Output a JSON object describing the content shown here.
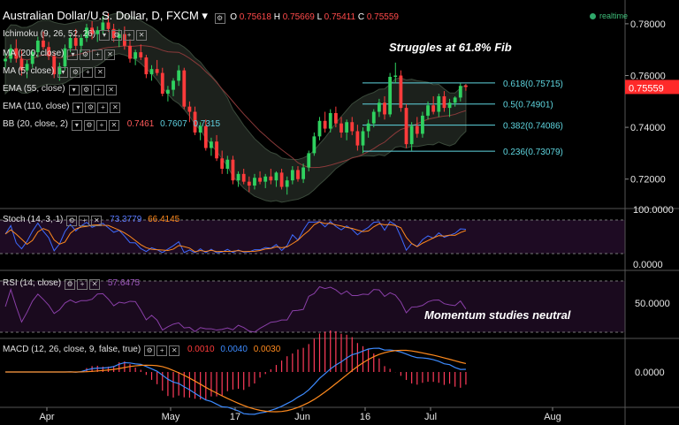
{
  "header": {
    "title": "Australian Dollar/U.S. Dollar, D, FXCM",
    "o_label": "O",
    "o": "0.75618",
    "h_label": "H",
    "h": "0.75669",
    "l_label": "L",
    "l": "0.75411",
    "c_label": "C",
    "c": "0.75559",
    "realtime": "realtime"
  },
  "indicators": {
    "ichimoku": "Ichimoku (9, 26, 52, 26)",
    "ma200": "MA (200, close)",
    "ma5": "MA (5, close)",
    "ema55": "EMA (55, close)",
    "ema110": "EMA (110, close)",
    "bb": "BB (20, close, 2)",
    "bb_values": [
      "0.7461",
      "0.7607",
      "0.7315"
    ],
    "stoch": "Stoch (14, 3, 1)",
    "stoch_values": [
      "73.3779",
      "66.4145"
    ],
    "rsi": "RSI (14, close)",
    "rsi_value": "57.6475",
    "macd": "MACD (12, 26, close, 9, false, true)",
    "macd_values": [
      "0.0010",
      "0.0040",
      "0.0030"
    ]
  },
  "annotations": {
    "main": "Struggles at 61.8% Fib",
    "rsi": "Momentum studies neutral"
  },
  "colors": {
    "up": "#2fd15f",
    "down": "#ff3b3b",
    "fib": "#5fd6e0",
    "stoch_k": "#3d6bff",
    "stoch_d": "#ff8a1e",
    "rsi": "#8a3fa8",
    "macd": "#3d8bff",
    "signal": "#ff8a1e",
    "bb_fill": "#1c211c"
  },
  "chart_data": {
    "type": "candlestick",
    "title": "Australian Dollar/U.S. Dollar, D, FXCM",
    "x_ticks": [
      "Apr",
      "May",
      "17",
      "Jun",
      "16",
      "Jul",
      "Aug"
    ],
    "y_ticks": [
      "0.78000",
      "0.76000",
      "0.74000",
      "0.72000"
    ],
    "last_price": "0.75559",
    "ylim": [
      0.71,
      0.7885
    ],
    "fibonacci": [
      {
        "label": "0.618(0.75715)",
        "value": 0.75715
      },
      {
        "label": "0.5(0.74901)",
        "value": 0.74901
      },
      {
        "label": "0.382(0.74086)",
        "value": 0.74086
      },
      {
        "label": "0.236(0.73079)",
        "value": 0.73079
      }
    ],
    "candles": [
      [
        0.7655,
        0.769,
        0.763,
        0.7665
      ],
      [
        0.7665,
        0.772,
        0.765,
        0.7705
      ],
      [
        0.7705,
        0.774,
        0.765,
        0.7665
      ],
      [
        0.7665,
        0.77,
        0.76,
        0.762
      ],
      [
        0.762,
        0.766,
        0.759,
        0.7645
      ],
      [
        0.7645,
        0.77,
        0.763,
        0.769
      ],
      [
        0.769,
        0.775,
        0.767,
        0.7735
      ],
      [
        0.7735,
        0.777,
        0.77,
        0.771
      ],
      [
        0.771,
        0.773,
        0.766,
        0.7675
      ],
      [
        0.7675,
        0.769,
        0.759,
        0.7605
      ],
      [
        0.7605,
        0.765,
        0.758,
        0.7635
      ],
      [
        0.7635,
        0.772,
        0.762,
        0.7705
      ],
      [
        0.7705,
        0.776,
        0.769,
        0.7745
      ],
      [
        0.7745,
        0.778,
        0.77,
        0.7715
      ],
      [
        0.7715,
        0.776,
        0.769,
        0.7745
      ],
      [
        0.7745,
        0.78,
        0.773,
        0.7785
      ],
      [
        0.7785,
        0.781,
        0.774,
        0.776
      ],
      [
        0.776,
        0.779,
        0.773,
        0.7775
      ],
      [
        0.7775,
        0.783,
        0.776,
        0.7805
      ],
      [
        0.7805,
        0.784,
        0.777,
        0.778
      ],
      [
        0.778,
        0.78,
        0.773,
        0.7745
      ],
      [
        0.7745,
        0.778,
        0.771,
        0.776
      ],
      [
        0.776,
        0.779,
        0.77,
        0.7715
      ],
      [
        0.7715,
        0.774,
        0.765,
        0.7665
      ],
      [
        0.7665,
        0.77,
        0.764,
        0.769
      ],
      [
        0.769,
        0.772,
        0.766,
        0.767
      ],
      [
        0.767,
        0.768,
        0.759,
        0.7605
      ],
      [
        0.7605,
        0.764,
        0.758,
        0.7625
      ],
      [
        0.7625,
        0.766,
        0.76,
        0.761
      ],
      [
        0.761,
        0.763,
        0.752,
        0.753
      ],
      [
        0.753,
        0.756,
        0.75,
        0.7545
      ],
      [
        0.7545,
        0.759,
        0.752,
        0.758
      ],
      [
        0.758,
        0.764,
        0.756,
        0.762
      ],
      [
        0.762,
        0.763,
        0.747,
        0.748
      ],
      [
        0.748,
        0.75,
        0.742,
        0.746
      ],
      [
        0.746,
        0.748,
        0.737,
        0.738
      ],
      [
        0.738,
        0.742,
        0.735,
        0.7405
      ],
      [
        0.7405,
        0.743,
        0.731,
        0.732
      ],
      [
        0.732,
        0.736,
        0.729,
        0.7345
      ],
      [
        0.7345,
        0.737,
        0.727,
        0.728
      ],
      [
        0.728,
        0.731,
        0.722,
        0.724
      ],
      [
        0.724,
        0.729,
        0.722,
        0.7275
      ],
      [
        0.7275,
        0.729,
        0.718,
        0.7195
      ],
      [
        0.7195,
        0.723,
        0.717,
        0.722
      ],
      [
        0.722,
        0.724,
        0.718,
        0.719
      ],
      [
        0.719,
        0.721,
        0.715,
        0.7175
      ],
      [
        0.7175,
        0.722,
        0.716,
        0.7205
      ],
      [
        0.7205,
        0.723,
        0.718,
        0.719
      ],
      [
        0.719,
        0.722,
        0.7165,
        0.721
      ],
      [
        0.721,
        0.724,
        0.718,
        0.7195
      ],
      [
        0.7195,
        0.723,
        0.717,
        0.7225
      ],
      [
        0.7225,
        0.724,
        0.716,
        0.717
      ],
      [
        0.717,
        0.721,
        0.714,
        0.7195
      ],
      [
        0.7195,
        0.725,
        0.718,
        0.7235
      ],
      [
        0.7235,
        0.725,
        0.719,
        0.72
      ],
      [
        0.72,
        0.726,
        0.7185,
        0.7245
      ],
      [
        0.7245,
        0.731,
        0.723,
        0.73
      ],
      [
        0.73,
        0.738,
        0.729,
        0.7365
      ],
      [
        0.7365,
        0.744,
        0.735,
        0.7425
      ],
      [
        0.7425,
        0.746,
        0.738,
        0.7395
      ],
      [
        0.7395,
        0.747,
        0.738,
        0.7455
      ],
      [
        0.7455,
        0.748,
        0.74,
        0.7415
      ],
      [
        0.7415,
        0.744,
        0.736,
        0.738
      ],
      [
        0.738,
        0.743,
        0.735,
        0.742
      ],
      [
        0.742,
        0.744,
        0.737,
        0.7385
      ],
      [
        0.7385,
        0.741,
        0.731,
        0.733
      ],
      [
        0.733,
        0.74,
        0.73,
        0.7385
      ],
      [
        0.7385,
        0.743,
        0.736,
        0.7415
      ],
      [
        0.7415,
        0.747,
        0.74,
        0.746
      ],
      [
        0.746,
        0.751,
        0.744,
        0.7495
      ],
      [
        0.7495,
        0.752,
        0.743,
        0.745
      ],
      [
        0.745,
        0.761,
        0.744,
        0.7595
      ],
      [
        0.7595,
        0.765,
        0.757,
        0.76
      ],
      [
        0.76,
        0.762,
        0.746,
        0.7475
      ],
      [
        0.7475,
        0.749,
        0.732,
        0.7335
      ],
      [
        0.7335,
        0.742,
        0.731,
        0.7405
      ],
      [
        0.7405,
        0.744,
        0.736,
        0.7375
      ],
      [
        0.7375,
        0.746,
        0.736,
        0.7445
      ],
      [
        0.7445,
        0.75,
        0.743,
        0.7485
      ],
      [
        0.7485,
        0.752,
        0.745,
        0.746
      ],
      [
        0.746,
        0.753,
        0.744,
        0.752
      ],
      [
        0.752,
        0.754,
        0.746,
        0.7475
      ],
      [
        0.7475,
        0.751,
        0.744,
        0.7495
      ],
      [
        0.7495,
        0.752,
        0.748,
        0.7515
      ],
      [
        0.7515,
        0.757,
        0.75,
        0.756
      ],
      [
        0.75618,
        0.75669,
        0.75411,
        0.75559
      ]
    ]
  }
}
